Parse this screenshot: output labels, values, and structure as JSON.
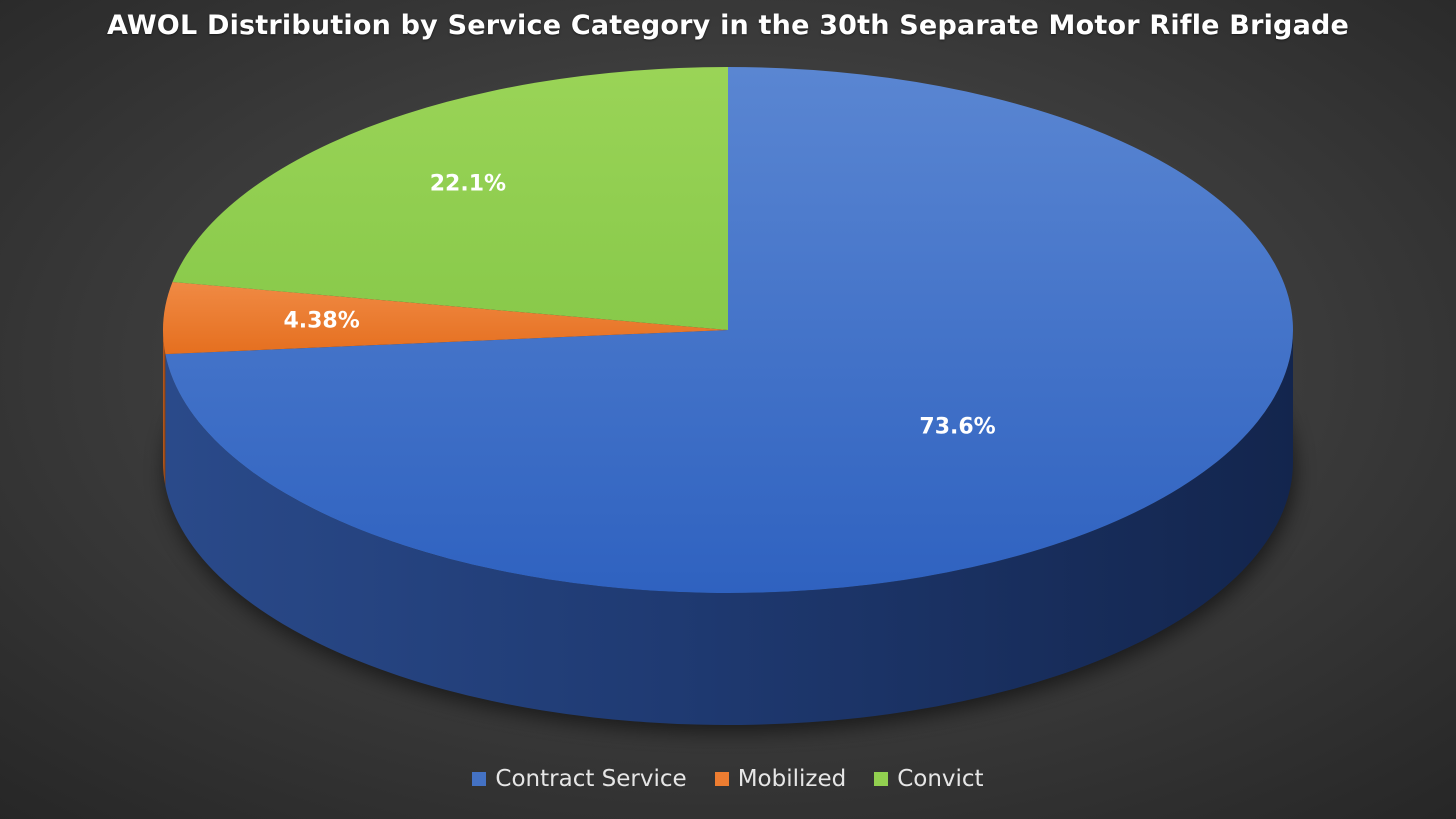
{
  "chart_data": {
    "type": "pie",
    "style": "3d",
    "title": "AWOL Distribution by Service Category in the 30th Separate Motor Rifle Brigade",
    "categories": [
      "Contract Service",
      "Mobilized",
      "Convict"
    ],
    "values": [
      73.6,
      4.38,
      22.1
    ],
    "data_labels": [
      "73.6%",
      "4.38%",
      "22.1%"
    ],
    "colors": [
      "#4472c4",
      "#ed7d31",
      "#92d050"
    ],
    "legend_position": "bottom"
  }
}
